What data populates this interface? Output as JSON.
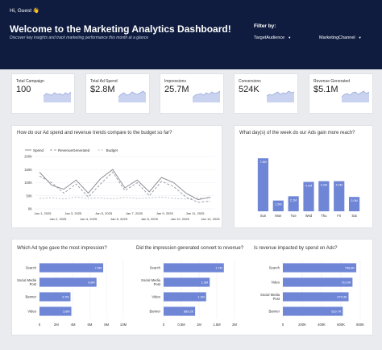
{
  "header": {
    "greeting": "Hi, Guest 👋",
    "title": "Welcome to the Marketing Analytics Dashboard!",
    "subtitle": "Discover key insights and track marketing performance this month at a glance",
    "filter_label": "Filter by:",
    "filters": [
      {
        "label": "TargetAudience"
      },
      {
        "label": "MarketingChannel"
      }
    ]
  },
  "kpis": [
    {
      "label": "Total Campaign",
      "value": "100",
      "trend": [
        0.4,
        0.55,
        0.5,
        0.45,
        0.6,
        0.5,
        0.55,
        0.45,
        0.6,
        0.5,
        0.65
      ]
    },
    {
      "label": "Total Ad Spend",
      "value": "$2.8M",
      "trend": [
        0.35,
        0.5,
        0.6,
        0.45,
        0.5,
        0.65,
        0.55,
        0.5,
        0.6,
        0.7,
        0.55
      ]
    },
    {
      "label": "Impressions",
      "value": "25.7M",
      "trend": [
        0.3,
        0.45,
        0.5,
        0.55,
        0.45,
        0.6,
        0.5,
        0.65,
        0.55,
        0.6,
        0.7
      ]
    },
    {
      "label": "Conversions",
      "value": "524K",
      "trend": [
        0.4,
        0.5,
        0.45,
        0.55,
        0.65,
        0.5,
        0.6,
        0.55,
        0.7,
        0.6,
        0.65
      ]
    },
    {
      "label": "Revenue Generated",
      "value": "$5.1M",
      "trend": [
        0.35,
        0.5,
        0.55,
        0.45,
        0.6,
        0.65,
        0.5,
        0.6,
        0.7,
        0.55,
        0.65
      ]
    }
  ],
  "colors": {
    "header": "#0f1c3f",
    "bar": "#6f86d6",
    "spend": "#8e8e96",
    "revenue": "#9aa0aa",
    "budget": "#b8bcc4"
  },
  "chart_data": [
    {
      "type": "line",
      "title": "How do our Ad spend and revenue trends compare to the budget so far?",
      "series": [
        {
          "name": "Spend",
          "values": [
            140,
            90,
            75,
            110,
            60,
            115,
            150,
            80,
            110,
            65,
            120,
            100,
            60,
            35,
            45
          ]
        },
        {
          "name": "RevenueGenerated",
          "values": [
            125,
            100,
            60,
            95,
            45,
            95,
            140,
            70,
            100,
            50,
            105,
            85,
            45,
            25,
            30
          ]
        },
        {
          "name": "Budget",
          "values": [
            40,
            42,
            38,
            45,
            40,
            42,
            38,
            44,
            40,
            42,
            45,
            40,
            38,
            42,
            40
          ]
        }
      ],
      "x_labels_top": [
        "Jan 1, 2025",
        "Jan 3, 2025",
        "Jan 5, 2025",
        "Jan 7, 2025",
        "Jan 9, 2025",
        "Jan 11, 2025"
      ],
      "x_labels_bottom": [
        "Jan 2, 2025",
        "Jan 4, 2025",
        "Jan 6, 2025",
        "Jan 8, 2025",
        "Jan 10, 2025",
        "Jan 12, 2025"
      ],
      "y_ticks": [
        "200K",
        "150K",
        "100K",
        "50K",
        "0K"
      ],
      "ylim": [
        0,
        200
      ],
      "grid": true,
      "legend": "top"
    },
    {
      "type": "bar",
      "title": "What day(s) of the week do our Ads gain more reach?",
      "categories": [
        "Sun",
        "Mon",
        "Tue",
        "Wed",
        "Thu",
        "Fri",
        "Sat"
      ],
      "values": [
        7.4,
        1.5,
        2.1,
        4.1,
        4.2,
        4.2,
        2.0
      ],
      "labels": [
        "7.4M",
        "1.5M",
        "2.1M",
        "4.1M",
        "4.2M",
        "4.2M",
        "2.0M"
      ],
      "ylim": [
        0,
        9
      ]
    },
    {
      "type": "bar",
      "orientation": "horizontal",
      "title": "Which Ad type gave the most impression?",
      "categories": [
        "Search",
        "Social Media Post",
        "Banner",
        "Video"
      ],
      "values": [
        7.6,
        6.8,
        3.7,
        3.8
      ],
      "labels": [
        "7.6M",
        "6.8M",
        "3.7M",
        "3.8M"
      ],
      "x_ticks": [
        "0",
        "2M",
        "4M",
        "6M",
        "8M",
        "10M"
      ],
      "xlim": [
        0,
        10
      ]
    },
    {
      "type": "bar",
      "orientation": "horizontal",
      "title": "Did the impression generated convert to revenue?",
      "categories": [
        "Search",
        "Social Media Post",
        "Video",
        "Banner"
      ],
      "values": [
        1.7,
        1.3,
        1.2,
        0.889
      ],
      "labels": [
        "1.7M",
        "1.3M",
        "1.2M",
        "889.2K"
      ],
      "x_ticks": [
        "0",
        "0.5M",
        "1M",
        "1.5M",
        "2M"
      ],
      "xlim": [
        0,
        2
      ]
    },
    {
      "type": "bar",
      "orientation": "horizontal",
      "title": "Is revenue impacted by spend on Ads?",
      "categories": [
        "Search",
        "Video",
        "Social Media Post",
        "Banner"
      ],
      "values": [
        758.8,
        719.9,
        679.3,
        619.7
      ],
      "labels": [
        "758.8K",
        "719.9K",
        "679.3K",
        "619.7K"
      ],
      "x_ticks": [
        "0",
        "200K",
        "400K",
        "600K",
        "800K"
      ],
      "xlim": [
        0,
        800
      ]
    }
  ]
}
